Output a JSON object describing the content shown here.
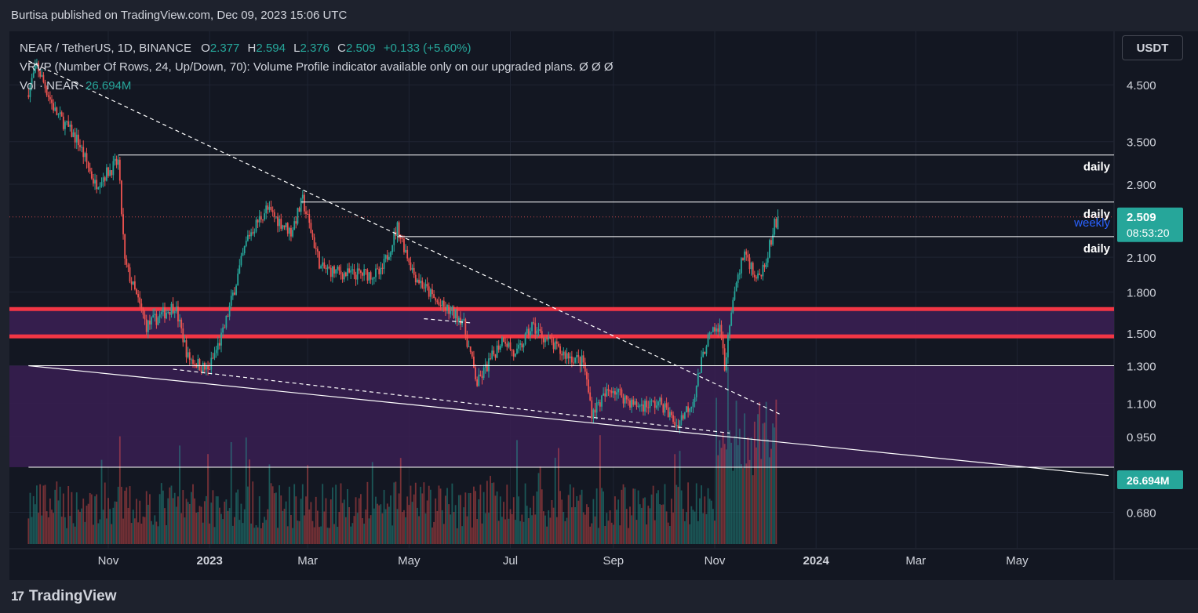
{
  "header": {
    "published_text": "Burtisa published on TradingView.com, Dec 09, 2023 15:06 UTC"
  },
  "legend": {
    "symbol": "NEAR / TetherUS, 1D, BINANCE",
    "o_label": "O",
    "o_value": "2.377",
    "h_label": "H",
    "h_value": "2.594",
    "l_label": "L",
    "l_value": "2.376",
    "c_label": "C",
    "c_value": "2.509",
    "change": "+0.133 (+5.60%)",
    "vrvp": "VRVP (Number Of Rows, 24, Up/Down, 70): Volume Profile indicator available only on our upgraded plans.  Ø  Ø  Ø",
    "vol_label": "Vol · NEAR",
    "vol_value": "26.694M"
  },
  "currency_button": "USDT",
  "footer": {
    "logo_mark": "17",
    "logo_text": "TradingView"
  },
  "colors": {
    "background": "#131722",
    "up": "#26a69a",
    "down": "#ef5350",
    "zone_red": "#f23645",
    "zone_fill": "#3a1f52",
    "weekly": "#2962ff"
  },
  "chart_data": {
    "type": "candlestick",
    "symbol": "NEAR/USDT",
    "interval": "1D",
    "y_scale": "log",
    "y_ticks": [
      0.68,
      0.95,
      1.1,
      1.3,
      1.5,
      1.8,
      2.1,
      2.9,
      3.5,
      4.5
    ],
    "y_tick_labels": [
      "0.680",
      "0.950",
      "1.100",
      "1.300",
      "1.500",
      "1.800",
      "2.100",
      "2.900",
      "3.500",
      "4.500"
    ],
    "x_tick_labels": [
      "Nov",
      "2023",
      "Mar",
      "May",
      "Jul",
      "Sep",
      "Nov",
      "2024",
      "Mar",
      "May"
    ],
    "x_tick_dates": [
      "2022-11-01",
      "2023-01-01",
      "2023-03-01",
      "2023-05-01",
      "2023-07-01",
      "2023-09-01",
      "2023-11-01",
      "2024-01-01",
      "2024-03-01",
      "2024-05-01"
    ],
    "x_range": [
      "2022-09-14",
      "2024-06-25"
    ],
    "price_anchors": [
      {
        "date": "2022-09-14",
        "price": 4.3
      },
      {
        "date": "2022-09-20",
        "price": 4.9
      },
      {
        "date": "2022-10-01",
        "price": 4.0
      },
      {
        "date": "2022-10-15",
        "price": 3.5
      },
      {
        "date": "2022-10-25",
        "price": 2.9
      },
      {
        "date": "2022-11-08",
        "price": 3.2
      },
      {
        "date": "2022-11-12",
        "price": 2.05
      },
      {
        "date": "2022-11-25",
        "price": 1.55
      },
      {
        "date": "2022-12-12",
        "price": 1.7
      },
      {
        "date": "2022-12-20",
        "price": 1.35
      },
      {
        "date": "2023-01-01",
        "price": 1.27
      },
      {
        "date": "2023-01-10",
        "price": 1.5
      },
      {
        "date": "2023-01-25",
        "price": 2.3
      },
      {
        "date": "2023-02-05",
        "price": 2.6
      },
      {
        "date": "2023-02-20",
        "price": 2.35
      },
      {
        "date": "2023-02-27",
        "price": 2.7
      },
      {
        "date": "2023-03-10",
        "price": 2.0
      },
      {
        "date": "2023-03-25",
        "price": 1.95
      },
      {
        "date": "2023-04-15",
        "price": 1.95
      },
      {
        "date": "2023-04-25",
        "price": 2.4
      },
      {
        "date": "2023-05-05",
        "price": 1.95
      },
      {
        "date": "2023-05-20",
        "price": 1.7
      },
      {
        "date": "2023-06-03",
        "price": 1.6
      },
      {
        "date": "2023-06-12",
        "price": 1.2
      },
      {
        "date": "2023-06-28",
        "price": 1.48
      },
      {
        "date": "2023-07-05",
        "price": 1.35
      },
      {
        "date": "2023-07-15",
        "price": 1.55
      },
      {
        "date": "2023-08-01",
        "price": 1.38
      },
      {
        "date": "2023-08-15",
        "price": 1.32
      },
      {
        "date": "2023-08-20",
        "price": 1.06
      },
      {
        "date": "2023-09-01",
        "price": 1.18
      },
      {
        "date": "2023-09-15",
        "price": 1.09
      },
      {
        "date": "2023-10-01",
        "price": 1.1
      },
      {
        "date": "2023-10-10",
        "price": 1.0
      },
      {
        "date": "2023-10-20",
        "price": 1.12
      },
      {
        "date": "2023-10-28",
        "price": 1.45
      },
      {
        "date": "2023-11-05",
        "price": 1.55
      },
      {
        "date": "2023-11-08",
        "price": 1.3
      },
      {
        "date": "2023-11-15",
        "price": 1.9
      },
      {
        "date": "2023-11-20",
        "price": 2.15
      },
      {
        "date": "2023-11-28",
        "price": 1.9
      },
      {
        "date": "2023-12-05",
        "price": 2.2
      },
      {
        "date": "2023-12-09",
        "price": 2.509
      }
    ],
    "last_candle": {
      "date": "2023-12-09",
      "open": 2.377,
      "high": 2.594,
      "low": 2.376,
      "close": 2.509
    },
    "volume_last": 26.694,
    "volume_unit": "M",
    "horizontal_levels": [
      {
        "price": 3.3,
        "label": "daily",
        "start": "2022-11-07"
      },
      {
        "price": 2.68,
        "label": "daily",
        "start": "2023-02-25"
      },
      {
        "price": 2.3,
        "label": "daily",
        "start": "2023-04-24"
      },
      {
        "price": 1.3,
        "label": "",
        "start": "2022-09-14"
      },
      {
        "price": 0.83,
        "label": "",
        "start": "2022-09-14"
      }
    ],
    "weekly_label": "weekly",
    "support_zone": {
      "low": 1.48,
      "high": 1.67
    },
    "lower_zone": {
      "low": 0.83,
      "high": 1.3
    },
    "trendlines": [
      {
        "style": "dashed",
        "from": [
          "2022-09-14",
          5.0
        ],
        "to": [
          "2023-12-10",
          1.05
        ]
      },
      {
        "style": "dashed",
        "from": [
          "2022-12-10",
          1.28
        ],
        "to": [
          "2023-11-10",
          0.965
        ]
      },
      {
        "style": "dashed",
        "from": [
          "2023-05-10",
          1.6
        ],
        "to": [
          "2023-06-08",
          1.57
        ]
      },
      {
        "style": "solid",
        "from": [
          "2022-09-14",
          1.3
        ],
        "to": [
          "2024-06-25",
          0.8
        ]
      }
    ],
    "price_label": "2.509",
    "countdown_label": "08:53:20",
    "volume_label": "26.694M"
  }
}
